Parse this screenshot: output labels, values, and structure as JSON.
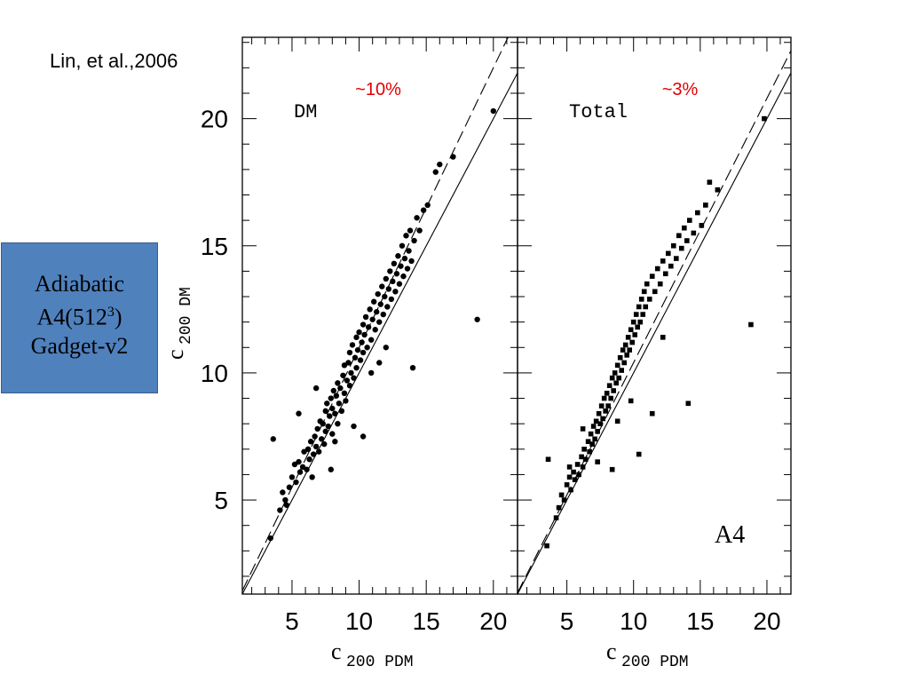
{
  "citation": "Lin, et al.,2006",
  "info_box": {
    "line1": "Adiabatic",
    "line2_prefix": "A4(512",
    "line2_sup": "3",
    "line2_suffix": ")",
    "line3": "Gadget-v2",
    "color": "#4f81bd"
  },
  "colors": {
    "annotation": "#e00000",
    "points": "#000000"
  },
  "chart_data": [
    {
      "type": "scatter",
      "panel_label": "DM",
      "scatter_annotation": "~10%",
      "xlabel": "c",
      "xlabel_sub": "200 PDM",
      "ylabel": "c",
      "ylabel_sub": "200 DM",
      "x_ticks": [
        "5",
        "10",
        "15",
        "20"
      ],
      "y_ticks": [
        "5",
        "10",
        "15",
        "20"
      ],
      "xlim": [
        1.3,
        21.8
      ],
      "ylim": [
        1.3,
        23.2
      ],
      "lines": [
        {
          "style": "solid",
          "slope": 1.0
        },
        {
          "style": "dashed",
          "slope": 1.1
        }
      ],
      "points": [
        [
          3.4,
          3.5
        ],
        [
          3.6,
          7.4
        ],
        [
          4.1,
          4.6
        ],
        [
          4.3,
          5.3
        ],
        [
          4.5,
          5.0
        ],
        [
          4.6,
          4.8
        ],
        [
          4.8,
          5.5
        ],
        [
          5.0,
          5.9
        ],
        [
          5.2,
          6.4
        ],
        [
          5.3,
          5.7
        ],
        [
          5.5,
          6.5
        ],
        [
          5.6,
          6.1
        ],
        [
          5.8,
          6.3
        ],
        [
          5.9,
          6.9
        ],
        [
          6.1,
          6.2
        ],
        [
          6.2,
          7.0
        ],
        [
          6.3,
          6.6
        ],
        [
          6.4,
          7.3
        ],
        [
          6.6,
          6.8
        ],
        [
          6.7,
          7.5
        ],
        [
          6.8,
          7.1
        ],
        [
          6.9,
          7.8
        ],
        [
          7.0,
          6.9
        ],
        [
          7.1,
          8.1
        ],
        [
          7.2,
          7.4
        ],
        [
          7.3,
          8.0
        ],
        [
          7.4,
          7.2
        ],
        [
          7.5,
          8.5
        ],
        [
          7.5,
          7.7
        ],
        [
          7.6,
          8.8
        ],
        [
          7.7,
          7.9
        ],
        [
          7.8,
          8.3
        ],
        [
          7.9,
          9.0
        ],
        [
          8.0,
          8.6
        ],
        [
          8.0,
          7.6
        ],
        [
          8.1,
          9.3
        ],
        [
          8.2,
          8.4
        ],
        [
          8.3,
          9.1
        ],
        [
          8.4,
          8.0
        ],
        [
          8.4,
          9.6
        ],
        [
          8.5,
          8.8
        ],
        [
          8.6,
          9.4
        ],
        [
          8.7,
          8.5
        ],
        [
          8.8,
          9.9
        ],
        [
          8.9,
          9.2
        ],
        [
          8.9,
          10.3
        ],
        [
          9.0,
          8.9
        ],
        [
          9.1,
          9.7
        ],
        [
          9.2,
          10.4
        ],
        [
          9.3,
          9.5
        ],
        [
          9.3,
          10.8
        ],
        [
          9.4,
          10.0
        ],
        [
          9.5,
          11.1
        ],
        [
          9.6,
          9.8
        ],
        [
          9.7,
          10.6
        ],
        [
          9.8,
          11.4
        ],
        [
          9.8,
          10.2
        ],
        [
          9.9,
          10.9
        ],
        [
          10.0,
          11.6
        ],
        [
          10.1,
          10.5
        ],
        [
          10.2,
          11.2
        ],
        [
          10.3,
          11.9
        ],
        [
          10.3,
          10.8
        ],
        [
          10.4,
          11.5
        ],
        [
          10.5,
          12.2
        ],
        [
          10.6,
          11.0
        ],
        [
          10.7,
          11.8
        ],
        [
          10.8,
          12.5
        ],
        [
          10.9,
          11.3
        ],
        [
          11.0,
          12.1
        ],
        [
          11.1,
          12.8
        ],
        [
          11.2,
          11.7
        ],
        [
          11.3,
          12.4
        ],
        [
          11.4,
          13.1
        ],
        [
          11.5,
          12.0
        ],
        [
          11.6,
          12.7
        ],
        [
          11.7,
          13.4
        ],
        [
          11.8,
          12.3
        ],
        [
          11.9,
          13.0
        ],
        [
          12.0,
          13.7
        ],
        [
          12.1,
          12.6
        ],
        [
          12.2,
          13.3
        ],
        [
          12.3,
          14.0
        ],
        [
          12.4,
          12.9
        ],
        [
          12.5,
          13.6
        ],
        [
          12.6,
          14.3
        ],
        [
          12.7,
          13.2
        ],
        [
          12.8,
          13.9
        ],
        [
          12.9,
          14.6
        ],
        [
          13.0,
          13.5
        ],
        [
          13.1,
          14.2
        ],
        [
          13.2,
          15.0
        ],
        [
          13.3,
          13.8
        ],
        [
          13.4,
          14.5
        ],
        [
          13.5,
          15.4
        ],
        [
          13.6,
          14.1
        ],
        [
          13.7,
          14.8
        ],
        [
          13.8,
          15.6
        ],
        [
          13.9,
          14.4
        ],
        [
          14.1,
          15.2
        ],
        [
          14.3,
          16.1
        ],
        [
          14.5,
          15.6
        ],
        [
          14.8,
          16.4
        ],
        [
          15.1,
          16.6
        ],
        [
          15.7,
          17.9
        ],
        [
          16.0,
          18.2
        ],
        [
          17.0,
          18.5
        ],
        [
          20.0,
          20.3
        ],
        [
          18.8,
          12.1
        ],
        [
          14.0,
          10.2
        ],
        [
          10.3,
          7.5
        ],
        [
          5.5,
          8.4
        ],
        [
          6.8,
          9.4
        ],
        [
          8.2,
          7.3
        ],
        [
          9.6,
          7.9
        ],
        [
          12.0,
          11.0
        ],
        [
          10.9,
          10.0
        ],
        [
          7.9,
          6.2
        ],
        [
          6.5,
          5.9
        ],
        [
          11.5,
          10.4
        ]
      ]
    },
    {
      "type": "scatter",
      "panel_label": "Total",
      "scatter_annotation": "~3%",
      "sim_label": "A4",
      "xlabel": "c",
      "xlabel_sub": "200 PDM",
      "x_ticks": [
        "5",
        "10",
        "15",
        "20"
      ],
      "xlim": [
        1.3,
        21.8
      ],
      "ylim": [
        1.3,
        23.2
      ],
      "lines": [
        {
          "style": "solid",
          "slope": 1.0
        },
        {
          "style": "dashed",
          "slope": 1.04
        }
      ],
      "points": [
        [
          3.5,
          3.2
        ],
        [
          3.6,
          6.6
        ],
        [
          4.2,
          4.3
        ],
        [
          4.4,
          4.7
        ],
        [
          4.6,
          5.2
        ],
        [
          4.8,
          5.0
        ],
        [
          5.0,
          5.6
        ],
        [
          5.2,
          5.9
        ],
        [
          5.3,
          5.4
        ],
        [
          5.5,
          6.1
        ],
        [
          5.6,
          5.8
        ],
        [
          5.8,
          6.4
        ],
        [
          5.9,
          6.0
        ],
        [
          6.1,
          6.7
        ],
        [
          6.2,
          6.3
        ],
        [
          6.3,
          7.0
        ],
        [
          6.4,
          6.6
        ],
        [
          6.6,
          7.3
        ],
        [
          6.7,
          6.9
        ],
        [
          6.8,
          7.6
        ],
        [
          6.9,
          7.2
        ],
        [
          7.0,
          7.9
        ],
        [
          7.1,
          7.4
        ],
        [
          7.2,
          8.1
        ],
        [
          7.3,
          7.7
        ],
        [
          7.4,
          8.4
        ],
        [
          7.5,
          8.0
        ],
        [
          7.6,
          8.7
        ],
        [
          7.7,
          8.2
        ],
        [
          7.8,
          9.0
        ],
        [
          7.9,
          8.5
        ],
        [
          8.0,
          9.2
        ],
        [
          8.1,
          8.7
        ],
        [
          8.2,
          9.5
        ],
        [
          8.3,
          9.0
        ],
        [
          8.4,
          9.8
        ],
        [
          8.5,
          9.3
        ],
        [
          8.6,
          10.0
        ],
        [
          8.7,
          9.6
        ],
        [
          8.8,
          10.3
        ],
        [
          8.9,
          9.8
        ],
        [
          9.0,
          10.6
        ],
        [
          9.1,
          10.1
        ],
        [
          9.2,
          10.9
        ],
        [
          9.3,
          10.4
        ],
        [
          9.4,
          11.1
        ],
        [
          9.5,
          10.7
        ],
        [
          9.6,
          11.4
        ],
        [
          9.7,
          10.9
        ],
        [
          9.8,
          11.7
        ],
        [
          9.9,
          11.2
        ],
        [
          10.0,
          12.0
        ],
        [
          10.1,
          11.5
        ],
        [
          10.2,
          12.3
        ],
        [
          10.3,
          11.8
        ],
        [
          10.4,
          12.6
        ],
        [
          10.5,
          12.0
        ],
        [
          10.6,
          12.9
        ],
        [
          10.7,
          12.3
        ],
        [
          10.8,
          13.2
        ],
        [
          10.9,
          12.6
        ],
        [
          11.0,
          13.5
        ],
        [
          11.2,
          12.9
        ],
        [
          11.4,
          13.8
        ],
        [
          11.6,
          13.2
        ],
        [
          11.8,
          14.1
        ],
        [
          12.0,
          13.5
        ],
        [
          12.2,
          14.4
        ],
        [
          12.4,
          13.9
        ],
        [
          12.6,
          14.7
        ],
        [
          12.8,
          14.2
        ],
        [
          13.0,
          15.0
        ],
        [
          13.2,
          14.5
        ],
        [
          13.4,
          15.4
        ],
        [
          13.6,
          14.9
        ],
        [
          13.8,
          15.7
        ],
        [
          14.0,
          15.2
        ],
        [
          14.2,
          16.0
        ],
        [
          14.5,
          15.5
        ],
        [
          14.8,
          16.3
        ],
        [
          15.1,
          15.8
        ],
        [
          15.4,
          16.6
        ],
        [
          15.7,
          17.5
        ],
        [
          16.3,
          17.2
        ],
        [
          19.8,
          20.0
        ],
        [
          18.8,
          11.9
        ],
        [
          14.1,
          8.8
        ],
        [
          11.4,
          8.4
        ],
        [
          10.4,
          6.8
        ],
        [
          8.4,
          6.2
        ],
        [
          6.2,
          7.8
        ],
        [
          9.8,
          8.9
        ],
        [
          12.2,
          11.4
        ],
        [
          7.3,
          6.5
        ],
        [
          8.8,
          8.1
        ],
        [
          5.2,
          6.3
        ]
      ]
    }
  ]
}
